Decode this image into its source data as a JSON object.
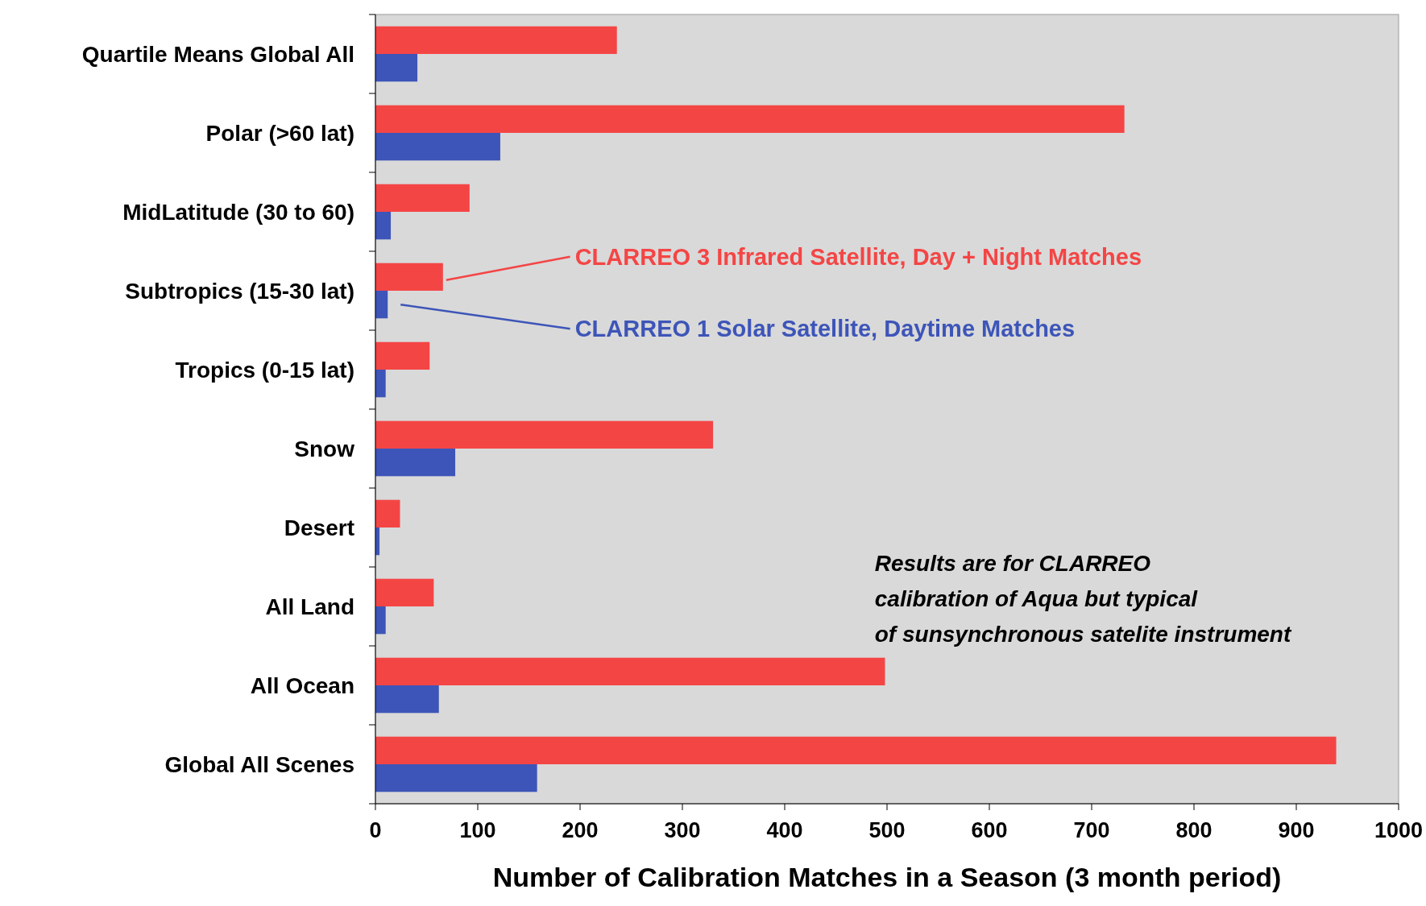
{
  "chart_data": {
    "type": "bar",
    "orientation": "horizontal",
    "xlabel": "Number of Calibration Matches in a Season (3 month period)",
    "categories": [
      "Quartile Means Global All",
      "Polar (>60 lat)",
      "MidLatitude (30 to 60)",
      "Subtropics (15-30 lat)",
      "Tropics (0-15 lat)",
      "Snow",
      "Desert",
      "All Land",
      "All Ocean",
      "Global All Scenes"
    ],
    "series": [
      {
        "name": "CLARREO 3 Infrared Satellite, Day + Night Matches",
        "color": "#f44545",
        "values": [
          236,
          732,
          92,
          66,
          53,
          330,
          24,
          57,
          498,
          939
        ]
      },
      {
        "name": "CLARREO 1 Solar Satellite, Daytime Matches",
        "color": "#3d55b8",
        "values": [
          41,
          122,
          15,
          12,
          10,
          78,
          4,
          10,
          62,
          158
        ]
      }
    ],
    "xlim": [
      0,
      1000
    ],
    "xticks": [
      0,
      100,
      200,
      300,
      400,
      500,
      600,
      700,
      800,
      900,
      1000
    ],
    "annotations": [
      "Results are for CLARREO\ncalibration of Aqua but typical\nof sunsynchronous satelite instrument"
    ]
  }
}
